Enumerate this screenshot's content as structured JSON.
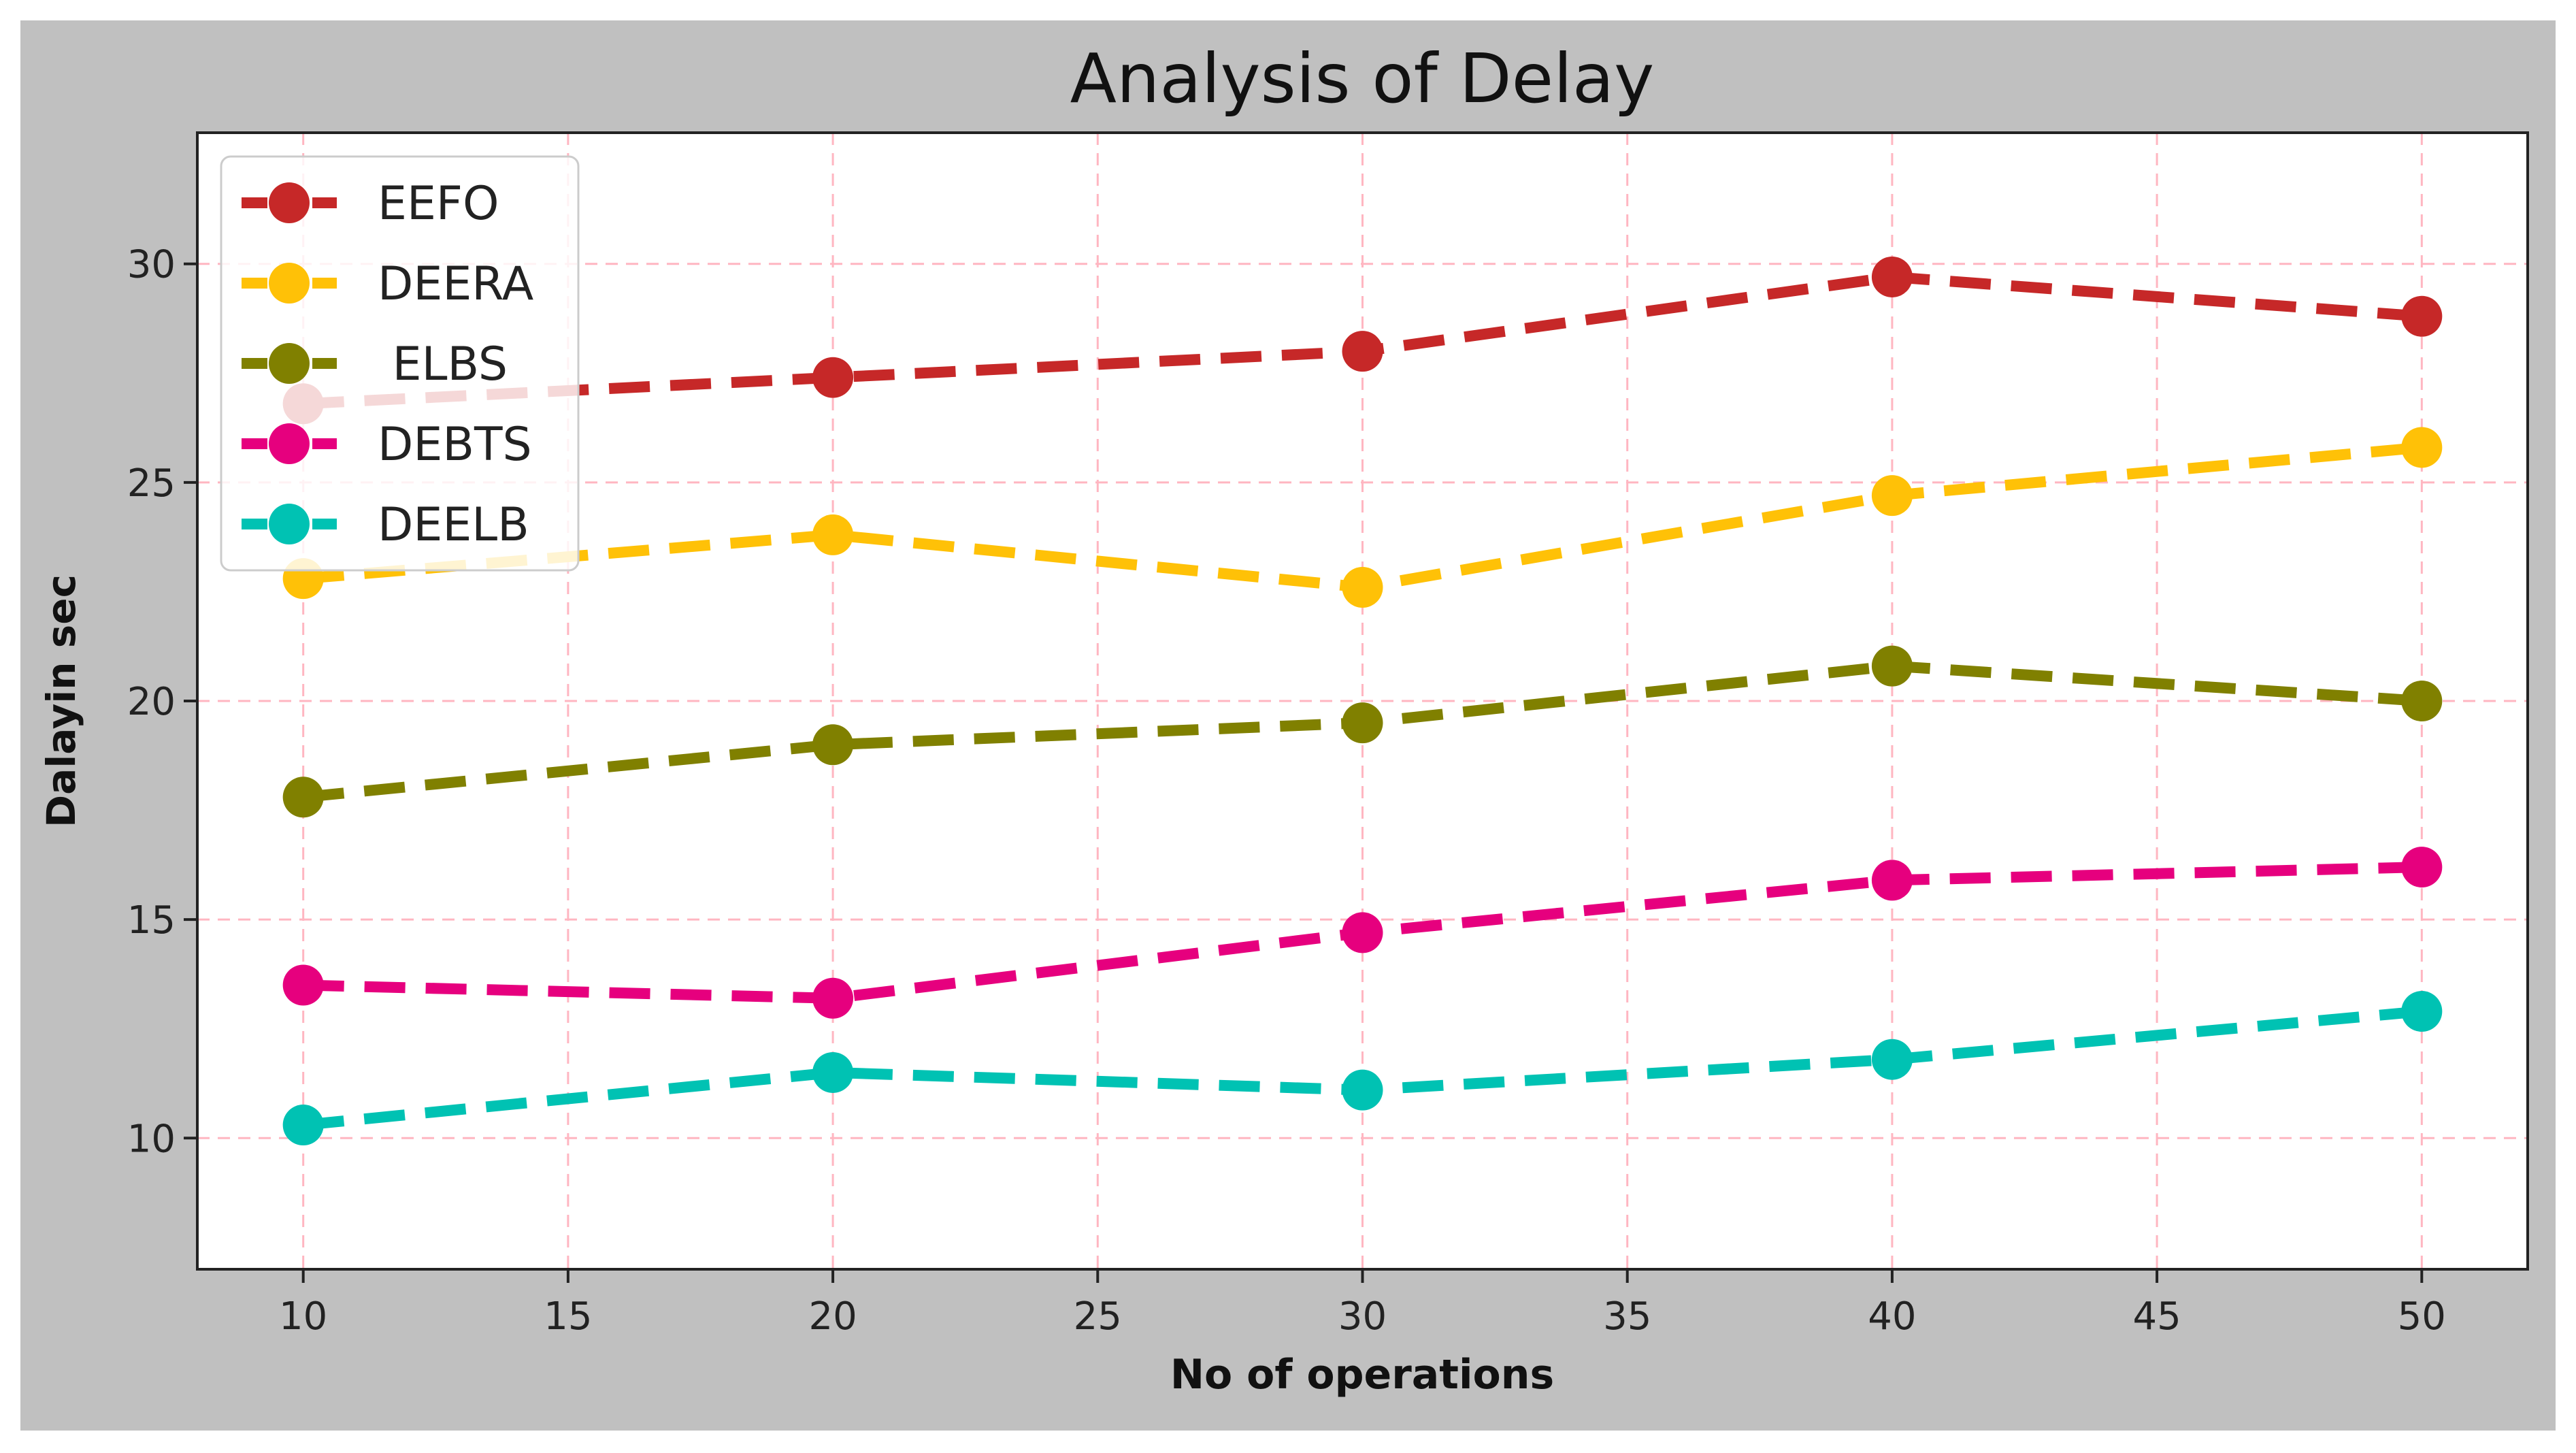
{
  "chart_data": {
    "type": "line",
    "title": "Analysis of Delay",
    "xlabel": "No of operations",
    "ylabel": "Dalayin sec",
    "x": [
      10,
      20,
      30,
      40,
      50
    ],
    "xlim": [
      8,
      52
    ],
    "ylim": [
      7,
      33
    ],
    "xticks": [
      10,
      15,
      20,
      25,
      30,
      35,
      40,
      45,
      50
    ],
    "yticks": [
      10,
      15,
      20,
      25,
      30
    ],
    "grid": true,
    "legend_position": "upper-left",
    "series": [
      {
        "name": "EEFO",
        "color": "#c62828",
        "values": [
          26.8,
          27.4,
          28.0,
          29.7,
          28.8
        ]
      },
      {
        "name": "DEERA",
        "color": "#ffc107",
        "values": [
          22.8,
          23.8,
          22.6,
          24.7,
          25.8
        ]
      },
      {
        "name": " ELBS",
        "color": "#808000",
        "values": [
          17.8,
          19.0,
          19.5,
          20.8,
          20.0
        ]
      },
      {
        "name": "DEBTS",
        "color": "#e6007e",
        "values": [
          13.5,
          13.2,
          14.7,
          15.9,
          16.2
        ]
      },
      {
        "name": "DEELB",
        "color": "#00c2b3",
        "values": [
          10.3,
          11.5,
          11.1,
          11.8,
          12.9
        ]
      }
    ],
    "colors": {
      "background": "#c0c0c0",
      "plot_background": "#ffffff",
      "grid": "#ffb6c1",
      "axis": "#222222"
    }
  }
}
